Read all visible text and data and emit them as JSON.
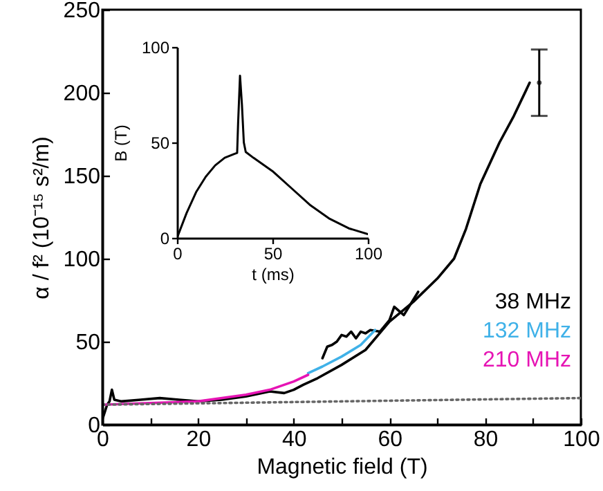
{
  "chart_data": [
    {
      "type": "line",
      "xlabel": "Magnetic field (T)",
      "ylabel": "α / f² (10⁻¹⁵ s²/m)",
      "xlim": [
        0,
        100
      ],
      "ylim": [
        0,
        250
      ],
      "xticks": [
        0,
        {
          "value": 10,
          "label": null
        },
        20,
        {
          "value": 30,
          "label": null
        },
        40,
        {
          "value": 50,
          "label": null
        },
        60,
        {
          "value": 70,
          "label": null
        },
        80,
        {
          "value": 90,
          "label": null
        },
        100
      ],
      "yticks": [
        0,
        50,
        100,
        150,
        200,
        250
      ],
      "grid": false,
      "series": [
        {
          "name": "38 MHz",
          "color": "#000000",
          "x": [
            0,
            1,
            1.5,
            2,
            2.5,
            4,
            8,
            12,
            16,
            20,
            25,
            30,
            35,
            38,
            40,
            42,
            45,
            50,
            55,
            60,
            65,
            70,
            73.5,
            76,
            79,
            83,
            86,
            89.3
          ],
          "values": [
            3,
            12,
            14,
            21,
            15,
            14,
            15,
            16,
            15,
            14,
            15,
            17,
            20,
            19,
            21,
            24,
            28,
            36,
            45,
            62,
            74,
            88,
            100,
            118,
            145,
            170,
            186,
            206
          ]
        },
        {
          "color": "#000000",
          "x": [
            46,
            47,
            48,
            49,
            50,
            51,
            52,
            53,
            54,
            55,
            56,
            58,
            60,
            61,
            63,
            66
          ],
          "values": [
            40,
            47,
            48,
            50,
            54,
            53,
            56,
            52,
            56,
            55,
            57,
            56,
            63,
            71,
            66,
            80
          ]
        },
        {
          "name": "132 MHz",
          "color": "#3fb1e8",
          "x": [
            43,
            46,
            50,
            54,
            57
          ],
          "values": [
            31,
            35,
            41,
            48,
            57
          ]
        },
        {
          "name": "210 MHz",
          "color": "#e614b4",
          "x": [
            0,
            10,
            20,
            30,
            35,
            40,
            43
          ],
          "values": [
            12,
            13,
            14,
            18,
            21,
            26,
            30
          ]
        },
        {
          "color": "#666666",
          "line_style": "dotted",
          "x": [
            0,
            100
          ],
          "values": [
            12,
            16
          ]
        },
        {
          "type": "scatter",
          "marker": "circle",
          "color": "#000000",
          "x": [
            91.3
          ],
          "values": [
            206
          ],
          "errors": [
            20
          ]
        }
      ]
    },
    {
      "type": "line",
      "xlabel": "t (ms)",
      "ylabel": "B (T)",
      "xlim": [
        0,
        100
      ],
      "ylim": [
        0,
        100
      ],
      "xticks": [
        0,
        50,
        100
      ],
      "yticks": [
        0,
        50,
        100
      ],
      "grid": false,
      "series": [
        {
          "color": "#000000",
          "x": [
            0,
            5,
            10,
            15,
            20,
            25,
            30,
            31.5,
            32,
            33,
            34,
            35,
            36,
            40,
            50,
            60,
            70,
            80,
            90,
            100
          ],
          "values": [
            0,
            13,
            24,
            32,
            38,
            42,
            44,
            44.5,
            60,
            85,
            70,
            50,
            45,
            42,
            35,
            26,
            17,
            10,
            5,
            2
          ]
        }
      ]
    }
  ]
}
